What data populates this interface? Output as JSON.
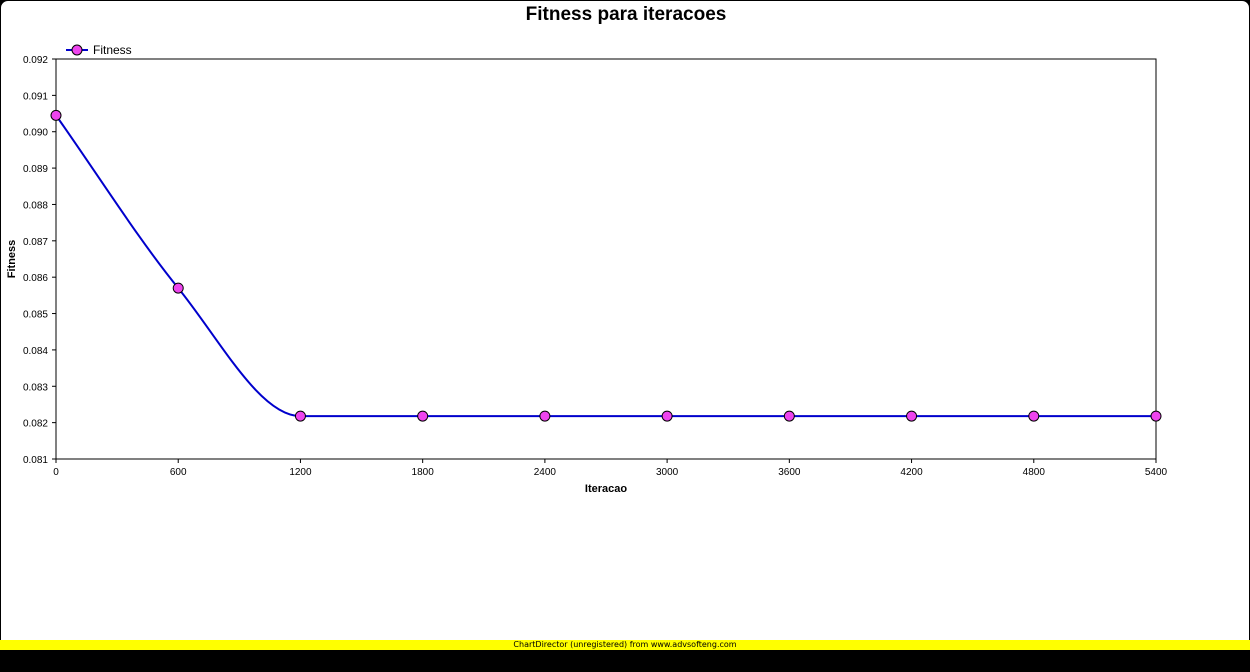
{
  "chart_data": {
    "type": "line",
    "title": "Fitness para iteracoes",
    "xlabel": "Iteracao",
    "ylabel": "Fitness",
    "x": [
      0,
      600,
      1200,
      1800,
      2400,
      3000,
      3600,
      4200,
      4800,
      5400
    ],
    "series": [
      {
        "name": "Fitness",
        "color": "#0000cc",
        "marker_color": "#ee44ee",
        "values": [
          0.09045,
          0.0857,
          0.08218,
          0.08218,
          0.08218,
          0.08218,
          0.08218,
          0.08218,
          0.08218,
          0.08218
        ]
      }
    ],
    "xlim": [
      0,
      5400
    ],
    "ylim": [
      0.081,
      0.092
    ],
    "x_ticks": [
      "0",
      "600",
      "1200",
      "1800",
      "2400",
      "3000",
      "3600",
      "4200",
      "4800",
      "5400"
    ],
    "y_ticks": [
      "0.081",
      "0.082",
      "0.083",
      "0.084",
      "0.085",
      "0.086",
      "0.087",
      "0.088",
      "0.089",
      "0.090",
      "0.091",
      "0.092"
    ],
    "legend_position": "top-left",
    "grid": false,
    "smooth": true
  },
  "footer": {
    "watermark": "ChartDirector (unregistered) from www.advsofteng.com"
  }
}
